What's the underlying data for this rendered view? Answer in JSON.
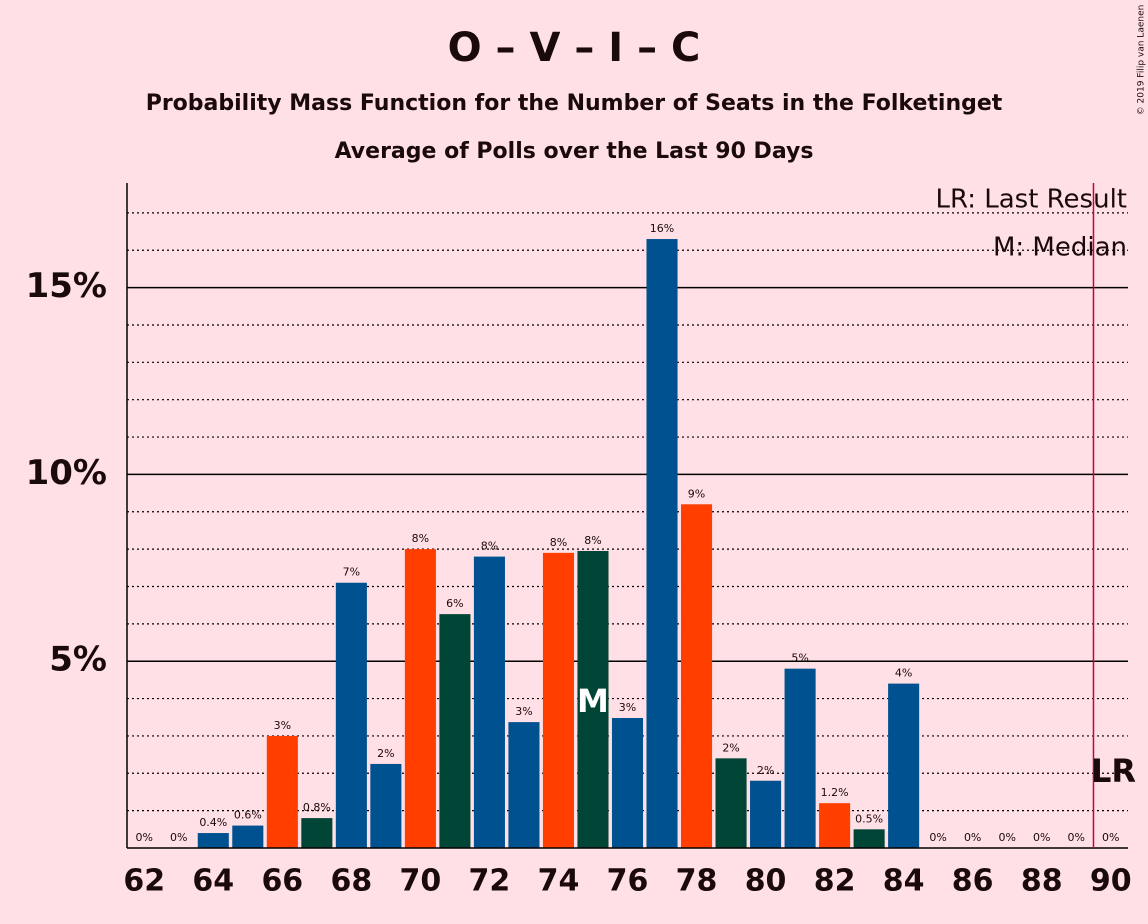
{
  "chart_data": {
    "type": "bar",
    "title": "O – V – I – C",
    "subtitles": [
      "Probability Mass Function for the Number of Seats in the Folketinget",
      "Average of Polls over the Last 90 Days"
    ],
    "x": [
      62,
      63,
      64,
      65,
      66,
      67,
      68,
      69,
      70,
      71,
      72,
      73,
      74,
      75,
      76,
      77,
      78,
      79,
      80,
      81,
      82,
      83,
      84,
      85,
      86,
      87,
      88,
      89,
      90
    ],
    "values": [
      0,
      0,
      0.4,
      0.6,
      3.0,
      0.8,
      7.1,
      2.25,
      8.0,
      6.26,
      7.8,
      3.37,
      7.9,
      7.95,
      3.48,
      16.3,
      9.2,
      2.4,
      1.8,
      4.8,
      1.2,
      0.5,
      4.4,
      0,
      0,
      0,
      0,
      0,
      0
    ],
    "value_labels": [
      "0%",
      "0%",
      "0.4%",
      "0.6%",
      "3%",
      "0.8%",
      "7%",
      "2%",
      "8%",
      "6%",
      "8%",
      "3%",
      "8%",
      "8%",
      "3%",
      "16%",
      "9%",
      "2%",
      "2%",
      "5%",
      "1.2%",
      "0.5%",
      "4%",
      "0%",
      "0%",
      "0%",
      "0%",
      "0%",
      "0%"
    ],
    "colors": [
      "#00518f",
      "#00518f",
      "#00518f",
      "#00518f",
      "#ff3e00",
      "#004536",
      "#00518f",
      "#00518f",
      "#ff3e00",
      "#004536",
      "#00518f",
      "#00518f",
      "#ff3e00",
      "#004536",
      "#00518f",
      "#00518f",
      "#ff3e00",
      "#004536",
      "#00518f",
      "#00518f",
      "#ff3e00",
      "#004536",
      "#00518f",
      "#00518f",
      "#00518f",
      "#00518f",
      "#00518f",
      "#00518f",
      "#00518f"
    ],
    "xlim": [
      61.5,
      90.5
    ],
    "xticks": [
      62,
      64,
      66,
      68,
      70,
      72,
      74,
      76,
      78,
      80,
      82,
      84,
      86,
      88,
      90
    ],
    "ylim": [
      0,
      17.8
    ],
    "yticks": [
      {
        "value": 5,
        "label": "5%"
      },
      {
        "value": 10,
        "label": "10%"
      },
      {
        "value": 15,
        "label": "15%"
      }
    ],
    "minor_yticks": [
      1,
      2,
      3,
      4,
      6,
      7,
      8,
      9,
      11,
      12,
      13,
      14,
      16,
      17
    ],
    "median": {
      "x": 75,
      "label": "M"
    },
    "last_result": {
      "x": 89.5,
      "label": "LR"
    },
    "legend": [
      "LR: Last Result",
      "M: Median"
    ],
    "credit": "© 2019 Filip van Laenen"
  }
}
